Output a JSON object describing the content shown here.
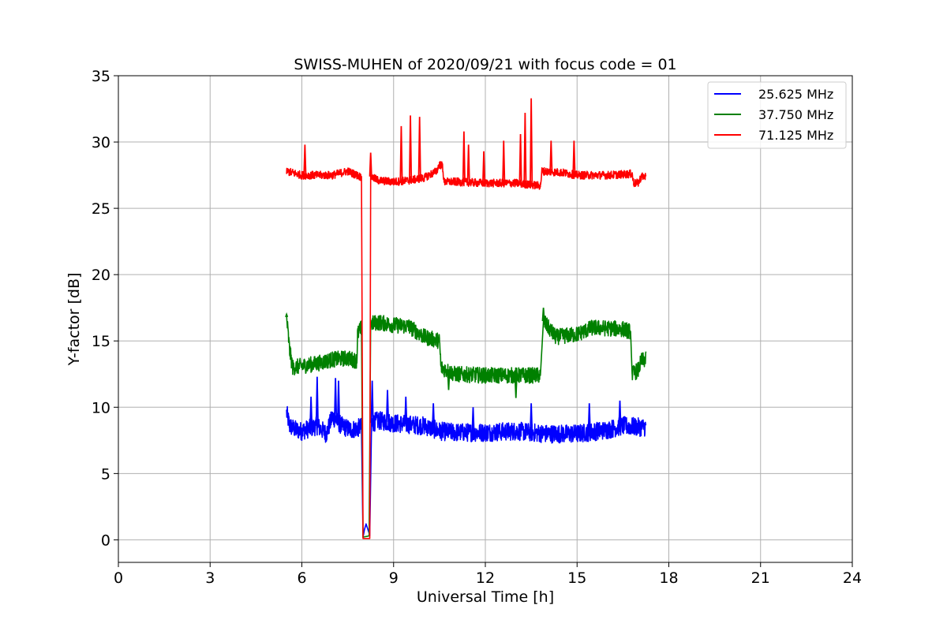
{
  "chart_data": {
    "type": "line",
    "title": "SWISS-MUHEN of 2020/09/21 with focus code = 01",
    "xlabel": "Universal Time [h]",
    "ylabel": "Y-factor [dB]",
    "xlim": [
      0,
      24
    ],
    "ylim": [
      -1.7,
      35
    ],
    "xticks": [
      0,
      3,
      6,
      9,
      12,
      15,
      18,
      21,
      24
    ],
    "yticks": [
      0,
      5,
      10,
      15,
      20,
      25,
      30,
      35
    ],
    "grid": true,
    "legend_position": "top-right",
    "series": [
      {
        "name": "25.625 MHz",
        "color": "#0000ff",
        "band": 1.4,
        "points": [
          [
            5.5,
            9.6
          ],
          [
            5.6,
            8.6
          ],
          [
            5.8,
            8.3
          ],
          [
            6.0,
            8.2
          ],
          [
            6.5,
            8.6
          ],
          [
            6.8,
            8.0
          ],
          [
            7.0,
            9.3
          ],
          [
            7.3,
            8.6
          ],
          [
            7.6,
            8.3
          ],
          [
            7.95,
            8.5
          ],
          [
            8.0,
            0.2
          ],
          [
            8.05,
            0.8
          ],
          [
            8.1,
            1.2
          ],
          [
            8.2,
            0.5
          ],
          [
            8.22,
            0.3
          ],
          [
            8.28,
            8.8
          ],
          [
            8.5,
            9.0
          ],
          [
            9.0,
            8.8
          ],
          [
            9.5,
            8.7
          ],
          [
            10.0,
            8.6
          ],
          [
            10.5,
            8.2
          ],
          [
            11.0,
            8.1
          ],
          [
            12.0,
            8.1
          ],
          [
            13.0,
            8.2
          ],
          [
            14.0,
            8.0
          ],
          [
            15.0,
            8.0
          ],
          [
            16.0,
            8.3
          ],
          [
            16.5,
            8.6
          ],
          [
            17.0,
            8.5
          ],
          [
            17.25,
            8.5
          ]
        ],
        "spikes": [
          [
            6.5,
            12.3
          ],
          [
            7.1,
            12.2
          ],
          [
            7.2,
            12.0
          ],
          [
            6.3,
            10.8
          ],
          [
            8.3,
            12.0
          ],
          [
            8.8,
            11.3
          ],
          [
            9.4,
            10.8
          ],
          [
            10.3,
            10.3
          ],
          [
            11.6,
            10.0
          ],
          [
            13.5,
            10.3
          ],
          [
            15.4,
            10.3
          ],
          [
            16.4,
            10.5
          ]
        ]
      },
      {
        "name": "37.750 MHz",
        "color": "#008000",
        "band": 1.2,
        "points": [
          [
            5.5,
            16.8
          ],
          [
            5.6,
            14.3
          ],
          [
            5.7,
            13.0
          ],
          [
            6.5,
            13.3
          ],
          [
            7.0,
            13.6
          ],
          [
            7.5,
            13.7
          ],
          [
            7.8,
            13.5
          ],
          [
            7.82,
            15.5
          ],
          [
            7.95,
            16.0
          ],
          [
            8.0,
            0.2
          ],
          [
            8.2,
            0.3
          ],
          [
            8.25,
            16.3
          ],
          [
            8.5,
            16.4
          ],
          [
            9.0,
            16.2
          ],
          [
            9.5,
            16.1
          ],
          [
            10.0,
            15.3
          ],
          [
            10.5,
            15.0
          ],
          [
            10.55,
            13.0
          ],
          [
            11.0,
            12.5
          ],
          [
            12.0,
            12.4
          ],
          [
            13.0,
            12.4
          ],
          [
            13.8,
            12.4
          ],
          [
            13.9,
            16.5
          ],
          [
            14.3,
            15.3
          ],
          [
            15.0,
            15.5
          ],
          [
            15.5,
            16.0
          ],
          [
            16.5,
            15.9
          ],
          [
            16.75,
            15.7
          ],
          [
            16.8,
            12.5
          ],
          [
            17.0,
            12.8
          ],
          [
            17.1,
            13.5
          ],
          [
            17.25,
            13.6
          ]
        ],
        "spikes": [
          [
            5.5,
            17.0
          ],
          [
            13.9,
            17.5
          ],
          [
            10.8,
            11.3
          ],
          [
            13.0,
            10.7
          ]
        ]
      },
      {
        "name": "71.125 MHz",
        "color": "#ff0000",
        "band": 0.6,
        "points": [
          [
            5.5,
            27.8
          ],
          [
            6.0,
            27.5
          ],
          [
            7.0,
            27.5
          ],
          [
            7.5,
            27.8
          ],
          [
            7.9,
            27.4
          ],
          [
            7.95,
            27.4
          ],
          [
            8.0,
            0.1
          ],
          [
            8.22,
            0.1
          ],
          [
            8.25,
            27.4
          ],
          [
            8.5,
            27.1
          ],
          [
            9.0,
            27.0
          ],
          [
            9.5,
            27.1
          ],
          [
            10.0,
            27.3
          ],
          [
            10.4,
            27.8
          ],
          [
            10.5,
            28.3
          ],
          [
            10.6,
            28.2
          ],
          [
            10.65,
            27.0
          ],
          [
            11.0,
            27.0
          ],
          [
            12.0,
            26.9
          ],
          [
            13.0,
            26.9
          ],
          [
            13.8,
            26.7
          ],
          [
            13.85,
            27.8
          ],
          [
            14.5,
            27.7
          ],
          [
            15.0,
            27.5
          ],
          [
            16.0,
            27.5
          ],
          [
            16.8,
            27.6
          ],
          [
            16.85,
            26.9
          ],
          [
            17.0,
            26.9
          ],
          [
            17.1,
            27.4
          ],
          [
            17.25,
            27.4
          ]
        ],
        "spikes": [
          [
            6.1,
            29.8
          ],
          [
            8.25,
            29.2
          ],
          [
            9.25,
            31.2
          ],
          [
            9.55,
            32.0
          ],
          [
            9.85,
            31.9
          ],
          [
            11.3,
            30.8
          ],
          [
            11.45,
            29.8
          ],
          [
            11.95,
            29.3
          ],
          [
            12.6,
            30.1
          ],
          [
            13.15,
            30.6
          ],
          [
            13.3,
            32.2
          ],
          [
            13.5,
            33.3
          ],
          [
            14.15,
            30.1
          ],
          [
            14.9,
            30.1
          ]
        ]
      }
    ]
  }
}
